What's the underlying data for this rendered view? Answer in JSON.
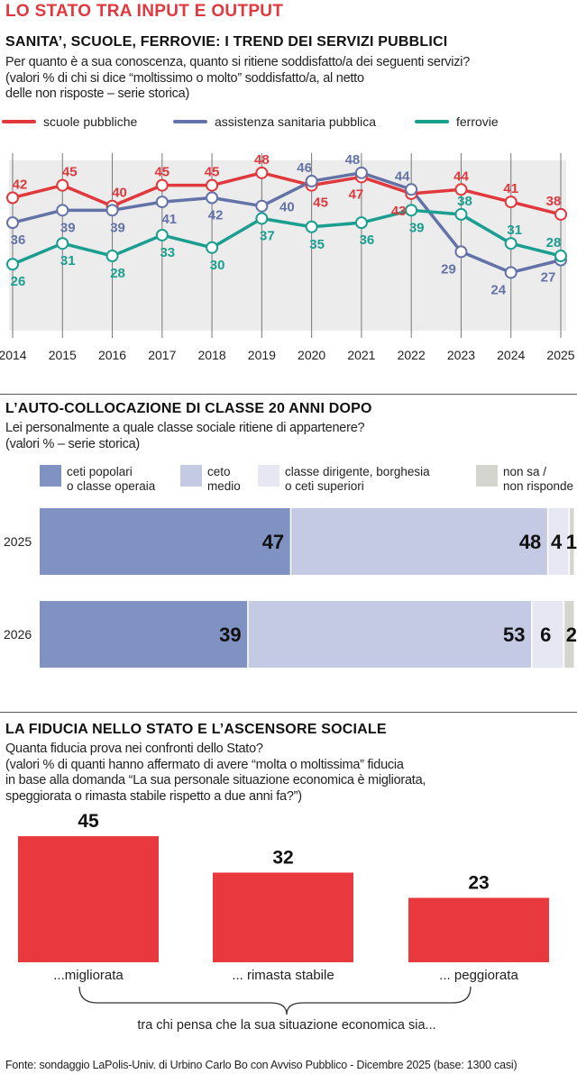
{
  "title": "LO STATO TRA INPUT E OUTPUT",
  "section1": {
    "heading": "SANITA’, SCUOLE, FERROVIE: I TREND DEI SERVIZI PUBBLICI",
    "subtitle_lines": [
      "Per quanto è a sua conoscenza, quanto si ritiene soddisfatto/a dei seguenti servizi?",
      "(valori % di chi si dice “moltissimo o molto” soddisfatto/a, al netto",
      "delle non risposte – serie storica)"
    ]
  },
  "section2": {
    "heading": "L’AUTO-COLLOCAZIONE DI CLASSE 20 ANNI DOPO",
    "subtitle_lines": [
      "Lei personalmente a quale classe sociale ritiene di appartenere?",
      "(valori % – serie storica)"
    ]
  },
  "section3": {
    "heading": "LA FIDUCIA NELLO STATO E L’ASCENSORE SOCIALE",
    "subtitle_lines": [
      "Quanta fiducia prova nei confronti dello Stato?",
      "(valori % di quanti hanno affermato di avere “molta o moltissima” fiducia",
      "in base alla domanda “La sua personale situazione economica è migliorata,",
      "speggiorata o rimasta stabile rispetto a due anni fa?”)"
    ]
  },
  "footer": "Fonte: sondaggio LaPolis-Univ. di Urbino Carlo Bo con Avviso Pubblico - Dicembre 2025 (base: 1300 casi)",
  "chart_data": [
    {
      "type": "line",
      "x": [
        2014,
        2015,
        2016,
        2017,
        2018,
        2019,
        2020,
        2021,
        2022,
        2023,
        2024,
        2025
      ],
      "series": [
        {
          "name": "scuole pubbliche",
          "color": "#e0383c",
          "values": [
            42,
            45,
            40,
            45,
            45,
            48,
            45,
            47,
            43,
            44,
            41,
            38
          ]
        },
        {
          "name": "assistenza sanitaria pubblica",
          "color": "#6373a8",
          "values": [
            36,
            39,
            39,
            41,
            42,
            40,
            46,
            48,
            44,
            29,
            24,
            27
          ]
        },
        {
          "name": "ferrovie",
          "color": "#1a9e8f",
          "values": [
            26,
            31,
            28,
            33,
            30,
            37,
            35,
            36,
            39,
            38,
            31,
            28
          ]
        }
      ],
      "ylim": [
        10,
        51
      ],
      "grid": "vertical",
      "legend": "top"
    },
    {
      "type": "bar",
      "orientation": "horizontal-stacked",
      "categories": [
        "2025",
        "2026"
      ],
      "series": [
        {
          "name": "ceti popolari o classe operaia",
          "label_lines": [
            "ceti popolari",
            "o classe operaia"
          ],
          "color": "#7f92c2",
          "values": [
            47,
            39
          ]
        },
        {
          "name": "ceto medio",
          "label_lines": [
            "ceto",
            "medio"
          ],
          "color": "#c4c9e4",
          "values": [
            48,
            53
          ]
        },
        {
          "name": "classe dirigente, borghesia o ceti superiori",
          "label_lines": [
            "classe dirigente, borghesia",
            "o ceti superiori"
          ],
          "color": "#e6e7f3",
          "values": [
            4,
            6
          ]
        },
        {
          "name": "non sa / non risponde",
          "label_lines": [
            "non sa /",
            "non risponde"
          ],
          "color": "#d5d5d0",
          "values": [
            1,
            2
          ]
        }
      ],
      "legend": "top"
    },
    {
      "type": "bar",
      "categories": [
        "...migliorata",
        "... rimasta stabile",
        "... peggiorata"
      ],
      "values": [
        45,
        32,
        23
      ],
      "color": "#e8393e",
      "xlabel": "tra chi pensa che la sua situazione economica sia..."
    }
  ]
}
